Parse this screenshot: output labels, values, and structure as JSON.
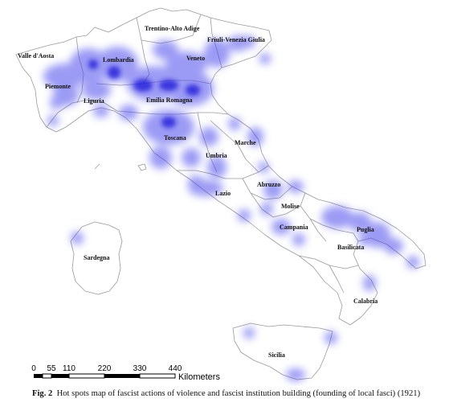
{
  "map": {
    "regions": [
      {
        "id": "valle-daosta",
        "label": "Valle d'Aosta"
      },
      {
        "id": "piemonte",
        "label": "Piemonte"
      },
      {
        "id": "lombardia",
        "label": "Lombardia"
      },
      {
        "id": "trentino",
        "label": "Trentino-Alto Adige"
      },
      {
        "id": "friuli",
        "label": "Friuli-Venezia Giulia"
      },
      {
        "id": "veneto",
        "label": "Veneto"
      },
      {
        "id": "liguria",
        "label": "Liguria"
      },
      {
        "id": "emilia",
        "label": "Emilia Romagna"
      },
      {
        "id": "toscana",
        "label": "Toscana"
      },
      {
        "id": "marche",
        "label": "Marche"
      },
      {
        "id": "umbria",
        "label": "Umbria"
      },
      {
        "id": "lazio",
        "label": "Lazio"
      },
      {
        "id": "abruzzo",
        "label": "Abruzzo"
      },
      {
        "id": "molise",
        "label": "Molise"
      },
      {
        "id": "campania",
        "label": "Campania"
      },
      {
        "id": "puglia",
        "label": "Puglia"
      },
      {
        "id": "basilicata",
        "label": "Basilicata"
      },
      {
        "id": "calabria",
        "label": "Calabria"
      },
      {
        "id": "sardegna",
        "label": "Sardegna"
      },
      {
        "id": "sicilia",
        "label": "Sicilia"
      }
    ],
    "hotspot_color": "#3a2fe0",
    "border_color": "#9a9a9a"
  },
  "scale_bar": {
    "ticks": [
      "0",
      "55",
      "110",
      "220",
      "330",
      "440"
    ],
    "unit": "Kilometers"
  },
  "caption": {
    "fig_number": "Fig. 2",
    "text": "Hot spots map of fascist actions of violence and fascist institution building (founding of local fasci) (1921)"
  }
}
